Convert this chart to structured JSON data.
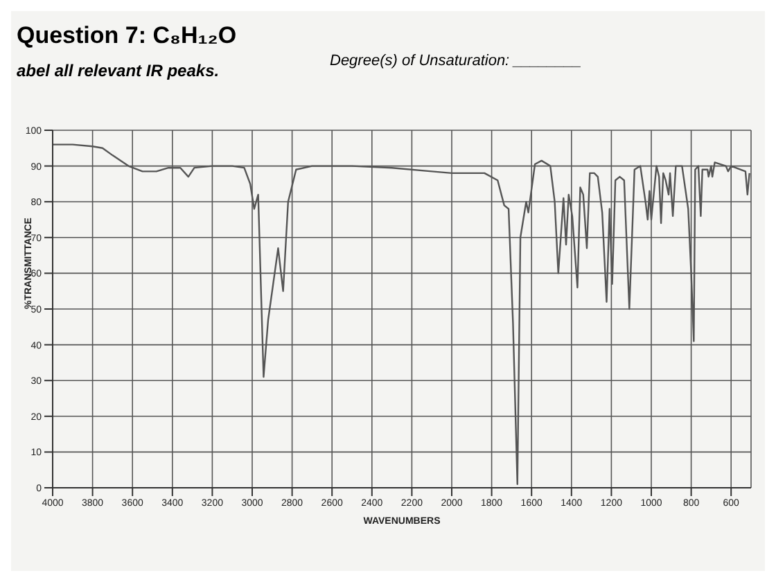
{
  "chart_data": {
    "type": "line",
    "title": "Question 7: C₈H₁₂O",
    "subtitle": "abel all relevant IR peaks.",
    "annotations": [
      "Degree(s) of Unsaturation: ________"
    ],
    "xlabel": "WAVENUMBERS",
    "ylabel": "%TRANSMITTANCE",
    "series": [
      {
        "color": "#555555",
        "x": [
          4000,
          3900,
          3800,
          3750,
          3700,
          3620,
          3550,
          3480,
          3420,
          3360,
          3320,
          3290,
          3200,
          3100,
          3040,
          3010,
          2990,
          2970,
          2943,
          2920,
          2890,
          2870,
          2845,
          2820,
          2780,
          2700,
          2500,
          2300,
          2100,
          2000,
          1900,
          1836,
          1770,
          1737,
          1715,
          1693,
          1671,
          1656,
          1627,
          1616,
          1583,
          1550,
          1506,
          1484,
          1466,
          1440,
          1427,
          1414,
          1396,
          1370,
          1356,
          1341,
          1323,
          1308,
          1286,
          1268,
          1246,
          1224,
          1209,
          1196,
          1180,
          1158,
          1136,
          1110,
          1084,
          1055,
          1029,
          1018,
          1009,
          1000,
          974,
          961,
          951,
          940,
          928,
          913,
          906,
          892,
          877,
          846,
          815,
          800,
          787,
          780,
          764,
          752,
          744,
          718,
          713,
          700,
          694,
          682,
          626,
          615,
          600,
          528,
          518,
          508
        ],
        "values": [
          96,
          96,
          95.5,
          95,
          93,
          90,
          88.5,
          88.5,
          89.5,
          89.5,
          87,
          89.5,
          90,
          90,
          89.5,
          85,
          78,
          82,
          31,
          47,
          59,
          67,
          55,
          80,
          89,
          90,
          90,
          89.5,
          88.5,
          88,
          88,
          88,
          86,
          79,
          78,
          46,
          1,
          70,
          80,
          77,
          90.5,
          91.5,
          90,
          80,
          60,
          81,
          68,
          82,
          76,
          56,
          84,
          82,
          67,
          88,
          88,
          87,
          77,
          52,
          78,
          57,
          86,
          87,
          86,
          50,
          89,
          90,
          80,
          75,
          83,
          75,
          90,
          87,
          74,
          88,
          86,
          82,
          88,
          76,
          90,
          90,
          78,
          60,
          41,
          89,
          90,
          76,
          89,
          89,
          87,
          90,
          87,
          91,
          90,
          88.5,
          90,
          88.5,
          82,
          88
        ]
      }
    ],
    "xlim": [
      4000,
      500
    ],
    "xticks": [
      4000,
      3800,
      3600,
      3400,
      3200,
      3000,
      2800,
      2600,
      2400,
      2200,
      2000,
      1800,
      1600,
      1400,
      1200,
      1000,
      800,
      600
    ],
    "ylim": [
      0,
      100
    ],
    "yticks": [
      0,
      10,
      20,
      30,
      40,
      50,
      60,
      70,
      80,
      90,
      100
    ],
    "grid": true,
    "legend": false,
    "marker": "none",
    "line_style": "solid"
  }
}
